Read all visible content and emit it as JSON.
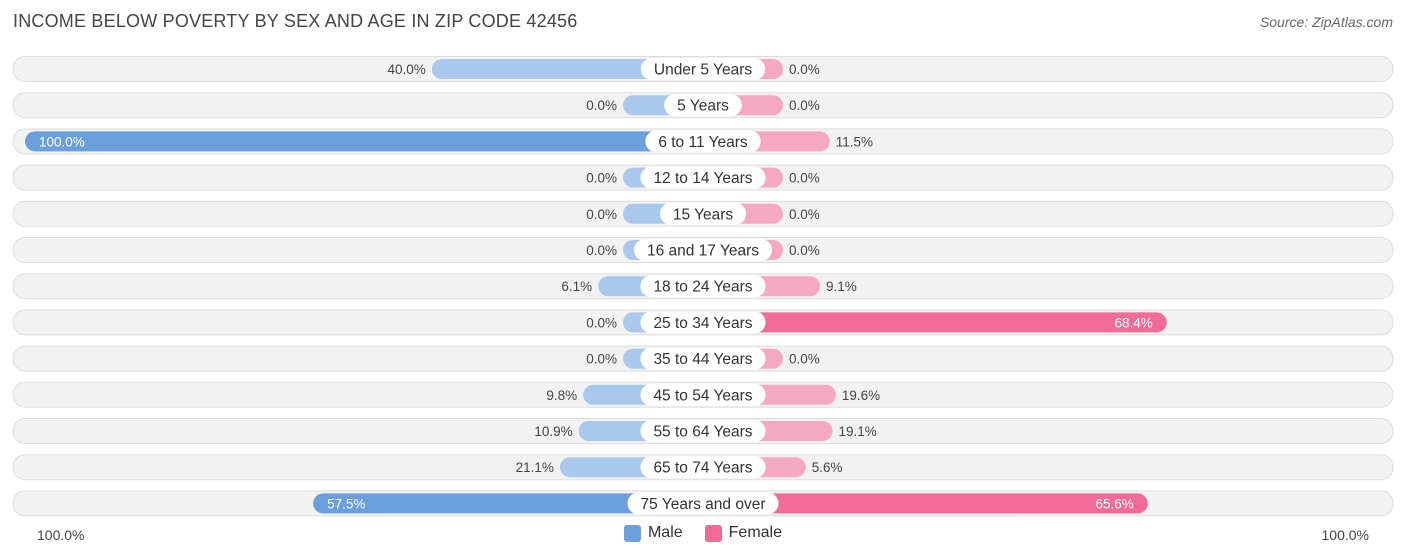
{
  "title": "INCOME BELOW POVERTY BY SEX AND AGE IN ZIP CODE 42456",
  "source": "Source: ZipAtlas.com",
  "colors": {
    "male": "#6a9fdb",
    "male_light": "#a9c8ec",
    "female": "#f06b97",
    "female_light": "#f5a8c2"
  },
  "axis": {
    "left_label": "100.0%",
    "right_label": "100.0%"
  },
  "legend": {
    "male": "Male",
    "female": "Female"
  },
  "chart_data": {
    "type": "bar",
    "orientation": "diverging-horizontal",
    "title": "INCOME BELOW POVERTY BY SEX AND AGE IN ZIP CODE 42456",
    "categories": [
      "Under 5 Years",
      "5 Years",
      "6 to 11 Years",
      "12 to 14 Years",
      "15 Years",
      "16 and 17 Years",
      "18 to 24 Years",
      "25 to 34 Years",
      "35 to 44 Years",
      "45 to 54 Years",
      "55 to 64 Years",
      "65 to 74 Years",
      "75 Years and over"
    ],
    "series": [
      {
        "name": "Male",
        "values": [
          40.0,
          0.0,
          100.0,
          0.0,
          0.0,
          0.0,
          6.1,
          0.0,
          0.0,
          9.8,
          10.9,
          21.1,
          57.5
        ],
        "labels": [
          "40.0%",
          "0.0%",
          "100.0%",
          "0.0%",
          "0.0%",
          "0.0%",
          "6.1%",
          "0.0%",
          "0.0%",
          "9.8%",
          "10.9%",
          "21.1%",
          "57.5%"
        ]
      },
      {
        "name": "Female",
        "values": [
          0.0,
          0.0,
          11.5,
          0.0,
          0.0,
          0.0,
          9.1,
          68.4,
          0.0,
          19.6,
          19.1,
          5.6,
          65.6
        ],
        "labels": [
          "0.0%",
          "0.0%",
          "11.5%",
          "0.0%",
          "0.0%",
          "0.0%",
          "9.1%",
          "68.4%",
          "0.0%",
          "19.6%",
          "19.1%",
          "5.6%",
          "65.6%"
        ]
      }
    ],
    "xlim": [
      -100,
      100
    ],
    "legend_position": "bottom-center"
  }
}
